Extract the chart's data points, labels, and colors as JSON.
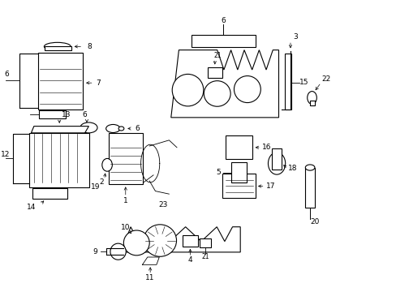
{
  "background_color": "#ffffff",
  "fig_width": 4.89,
  "fig_height": 3.6,
  "dpi": 100,
  "lw": 0.8,
  "ec": "#000000",
  "fc": "#ffffff",
  "label_fontsize": 6.5
}
